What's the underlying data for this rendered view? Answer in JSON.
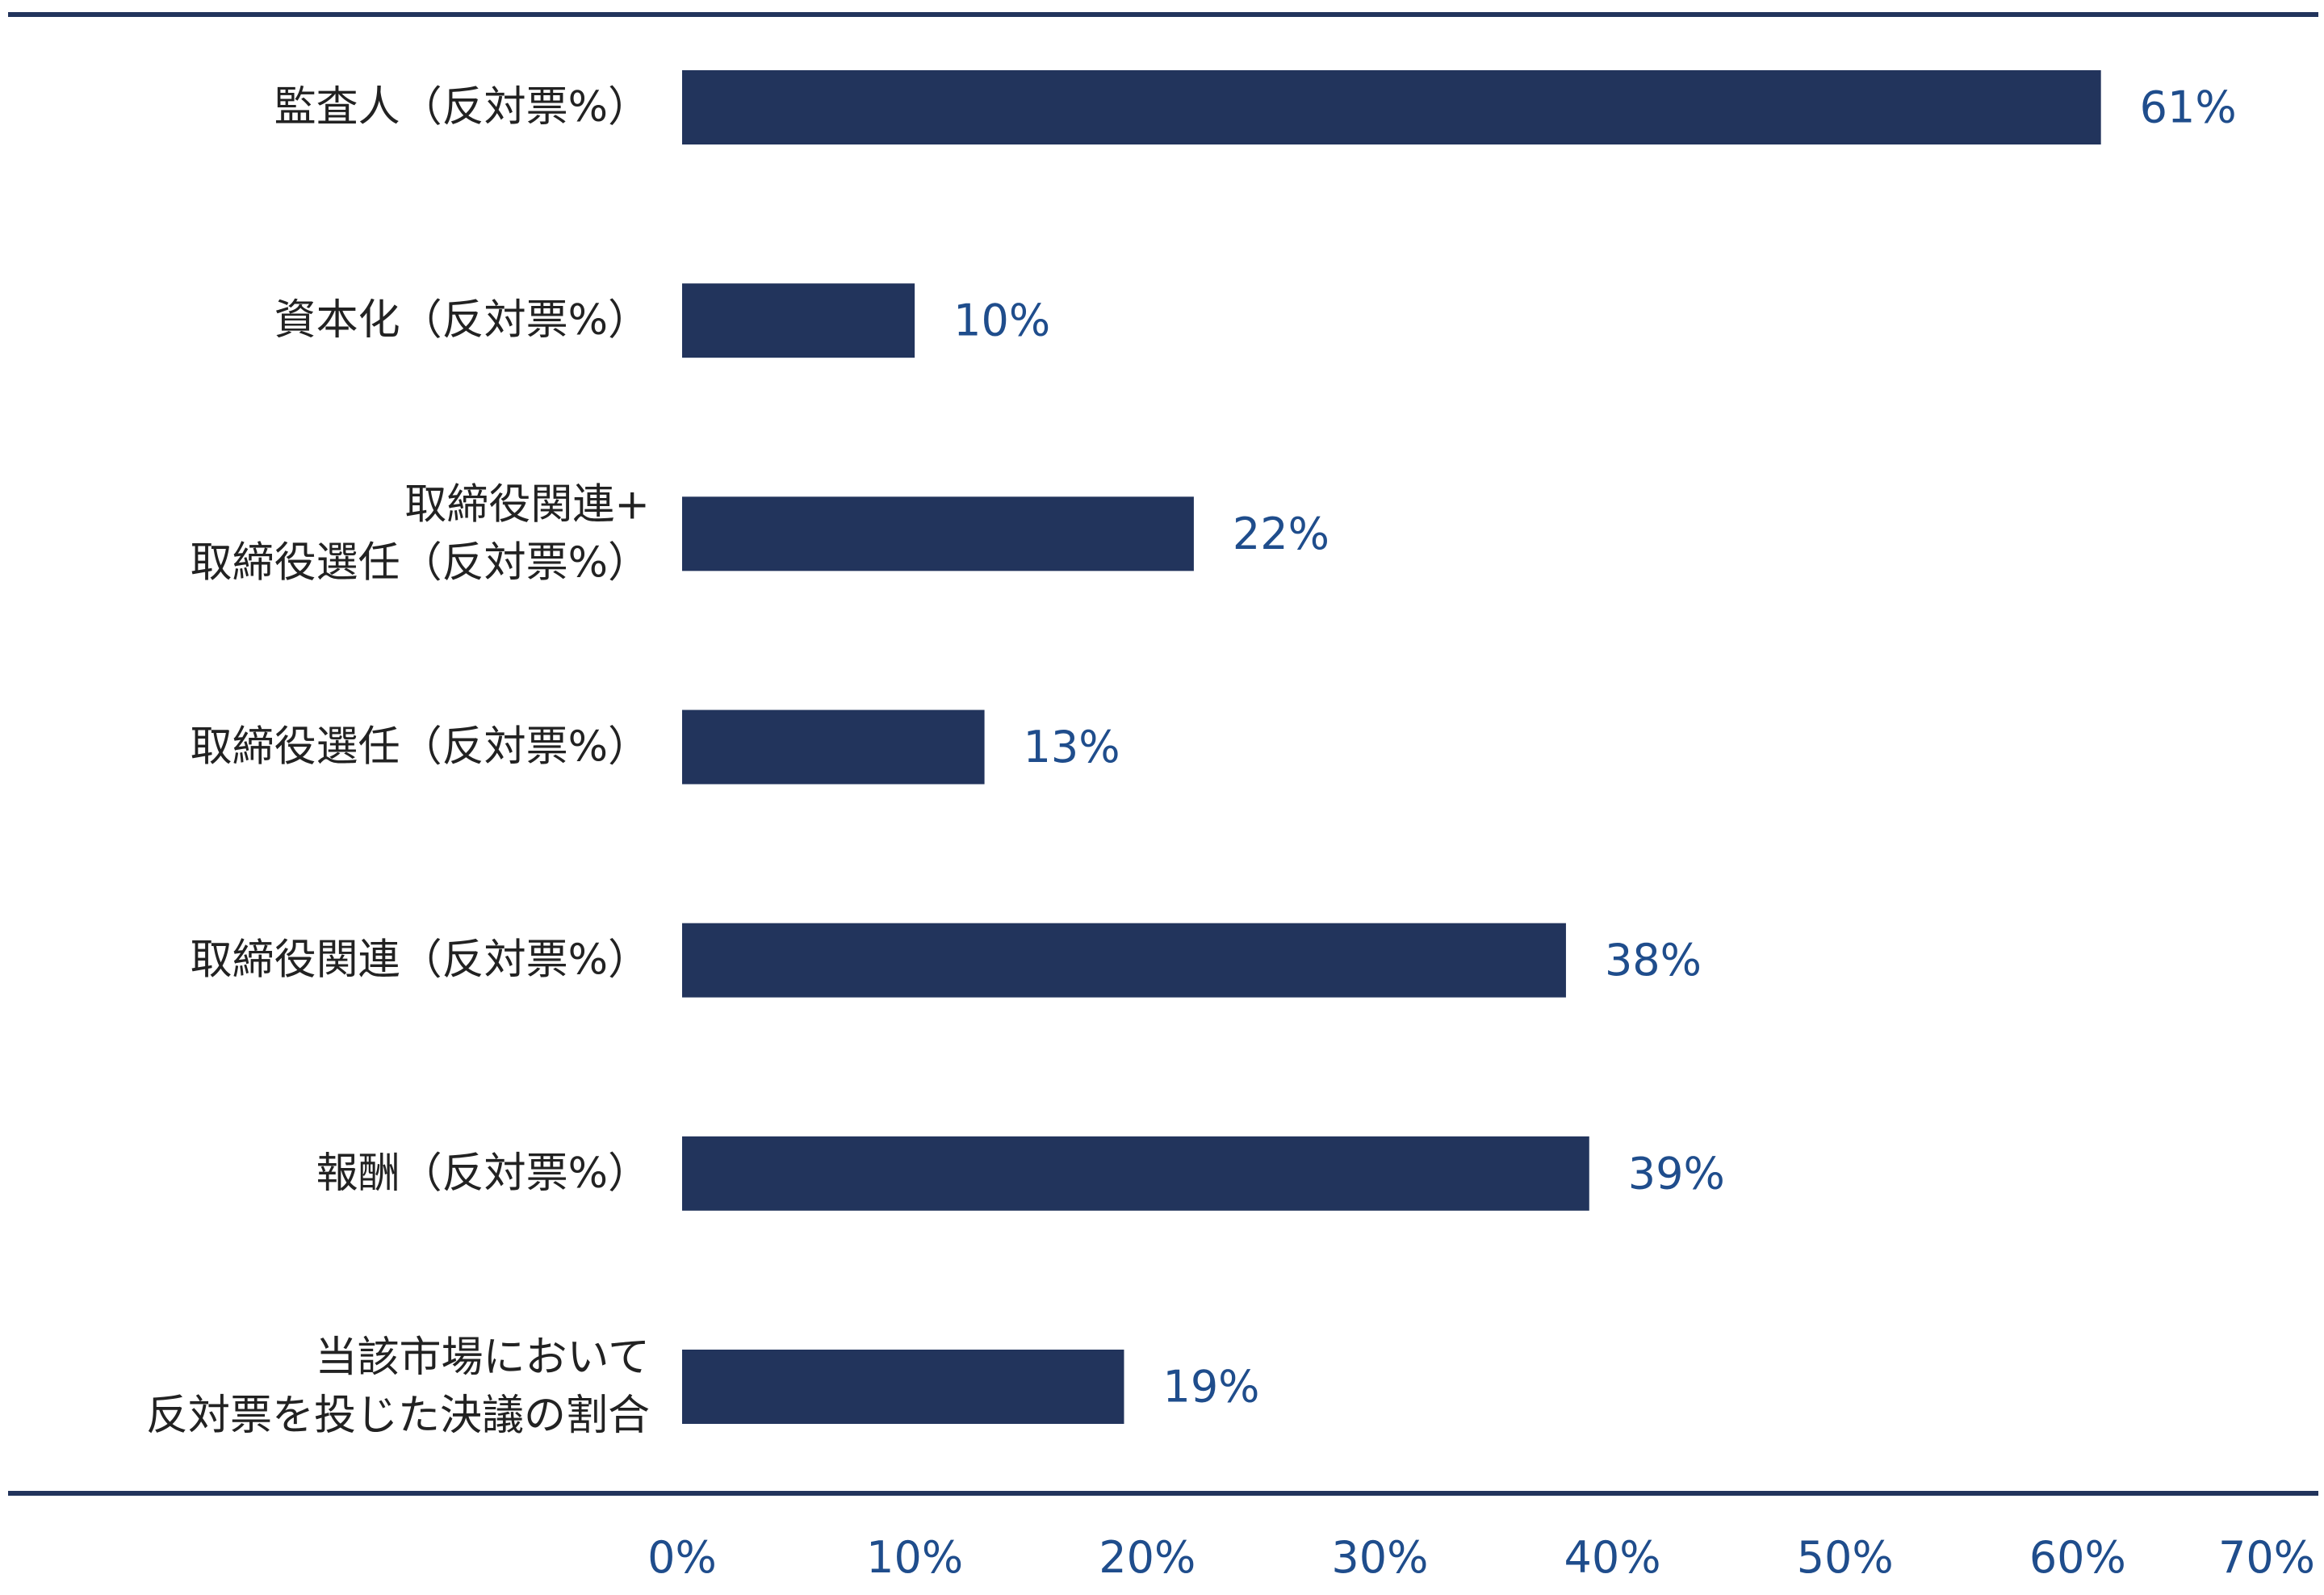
{
  "chart_data": {
    "type": "bar",
    "orientation": "horizontal",
    "categories": [
      [
        "監査人（反対票%）"
      ],
      [
        "資本化（反対票%）"
      ],
      [
        "取締役関連+",
        "取締役選任（反対票%）"
      ],
      [
        "取締役選任（反対票%）"
      ],
      [
        "取締役関連（反対票%）"
      ],
      [
        "報酬（反対票%）"
      ],
      [
        "当該市場において",
        "反対票を投じた決議の割合"
      ]
    ],
    "values": [
      61,
      10,
      22,
      13,
      38,
      39,
      19
    ],
    "value_labels": [
      "61%",
      "10%",
      "22%",
      "13%",
      "38%",
      "39%",
      "19%"
    ],
    "xlim": [
      0,
      70
    ],
    "x_ticks": [
      0,
      10,
      20,
      30,
      40,
      50,
      60,
      70
    ],
    "x_tick_labels": [
      "0%",
      "10%",
      "20%",
      "30%",
      "40%",
      "50%",
      "60%",
      "70%"
    ],
    "grid": false,
    "legend": "none",
    "colors": {
      "bar": "#22345c",
      "rule": "#22345c",
      "value_text": "#1f4d8c",
      "tick_text": "#1f4d8c",
      "category_text": "#222222"
    }
  }
}
